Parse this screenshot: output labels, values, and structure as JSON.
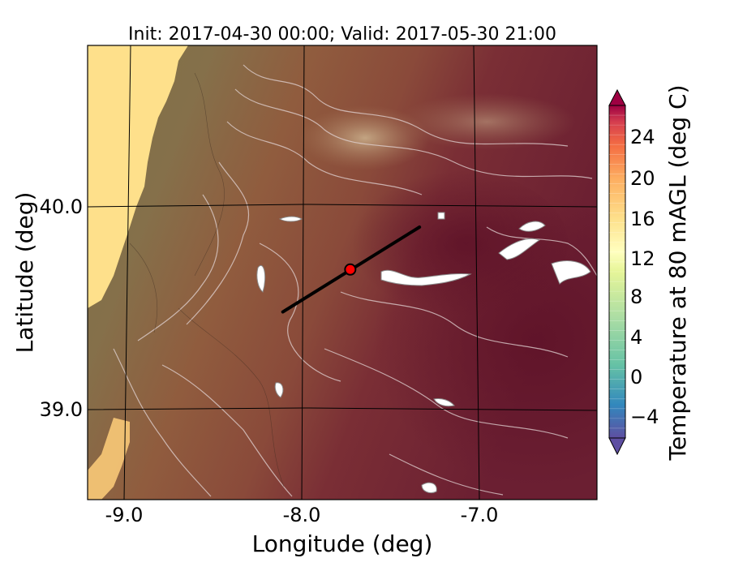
{
  "title": "Init: 2017-04-30 00:00; Valid: 2017-05-30 21:00",
  "x_axis": {
    "label": "Longitude (deg)",
    "ticks": [
      "-9.0",
      "-8.0",
      "-7.0"
    ]
  },
  "y_axis": {
    "label": "Latitude (deg)",
    "ticks": [
      "40.0",
      "39.0"
    ]
  },
  "colorbar": {
    "label": "Temperature at 80 mAGL (deg C)",
    "ticks": [
      "24",
      "20",
      "16",
      "12",
      "8",
      "4",
      "0",
      "−4"
    ],
    "colormap": "Spectral_r",
    "extend": "both"
  },
  "map": {
    "features": [
      "ocean (west)",
      "topography contours",
      "lakes/reservoirs (white)",
      "graticule lines"
    ],
    "cross_section_line": {
      "lon1": -8.12,
      "lat1": 39.48,
      "lon2": -7.35,
      "lat2": 39.9
    },
    "point_marker": {
      "lon": -7.74,
      "lat": 39.69,
      "color": "#ff0000"
    }
  },
  "chart_data": {
    "type": "heatmap",
    "title": "Init: 2017-04-30 00:00; Valid: 2017-05-30 21:00",
    "xlabel": "Longitude (deg)",
    "ylabel": "Latitude (deg)",
    "xlim": [
      -9.22,
      -6.35
    ],
    "ylim": [
      38.55,
      40.8
    ],
    "x_ticks": [
      -9.0,
      -8.0,
      -7.0
    ],
    "y_ticks": [
      40.0,
      39.0
    ],
    "colorbar_range": [
      -6,
      28
    ],
    "colorbar_ticks": [
      -4,
      0,
      4,
      8,
      12,
      16,
      20,
      24
    ],
    "colorbar_label": "Temperature at 80 mAGL (deg C)",
    "grid": true
  }
}
